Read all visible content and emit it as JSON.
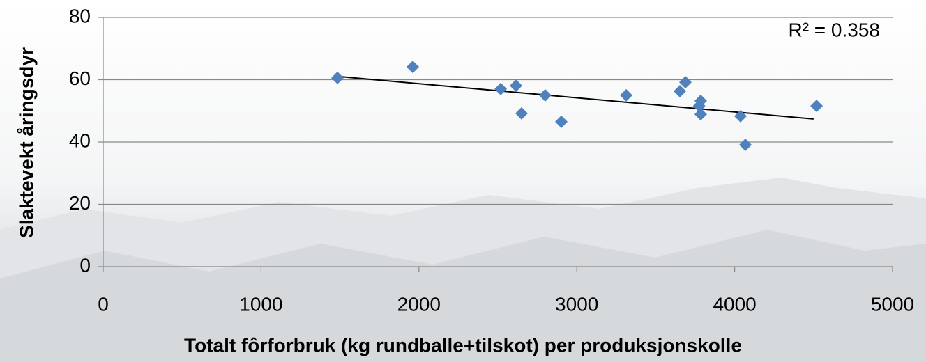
{
  "chart_data": {
    "type": "scatter",
    "xlabel": "Totalt fôrforbruk (kg rundballe+tilskot) per produksjonskolle",
    "ylabel": "Slaktevekt åringsdyr",
    "annotation": "R² = 0.358",
    "x": [
      1484,
      1961,
      2518,
      2615,
      2800,
      2650,
      2902,
      3313,
      3653,
      3688,
      3785,
      3775,
      3785,
      4037,
      4068,
      4519
    ],
    "values": [
      60.6,
      64.1,
      57.0,
      58.1,
      55.0,
      49.2,
      46.5,
      55.0,
      56.3,
      59.2,
      53.2,
      51.6,
      48.9,
      48.3,
      39.1,
      51.6
    ],
    "color": "#4f81bd",
    "trendline": {
      "x": [
        1500,
        4500
      ],
      "y": [
        61.0,
        47.4
      ],
      "color": "#000000"
    },
    "xlim": [
      0,
      5000
    ],
    "xticks": [
      0,
      1000,
      2000,
      3000,
      4000,
      5000
    ],
    "ylim": [
      0,
      80
    ],
    "yticks": [
      0,
      20,
      40,
      60,
      80
    ],
    "grid": true
  }
}
